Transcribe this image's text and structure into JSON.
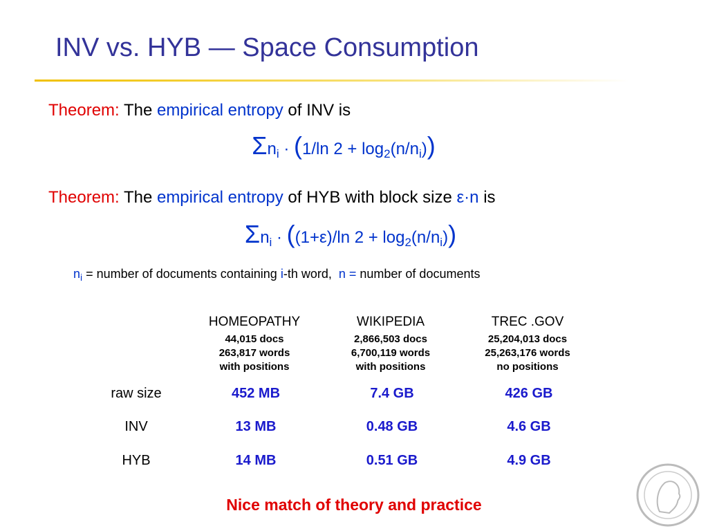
{
  "title": "INV vs. HYB — Space Consumption",
  "theorem1": {
    "label": "Theorem:",
    "the": "The",
    "term": "empirical entropy",
    "rest": "of INV is",
    "formula": [
      "Σ",
      "n",
      "i",
      " · ",
      "(",
      "1/ln 2 + log",
      "2",
      "(n/n",
      "i",
      ")",
      ")"
    ]
  },
  "theorem2": {
    "label": "Theorem:",
    "the": "The",
    "term": "empirical entropy",
    "rest": "of HYB with block size",
    "param": "ε·n",
    "end": "is",
    "formula": [
      "Σ",
      "n",
      "i",
      " · ",
      "(",
      "(1+ε)/ln 2 + log",
      "2",
      "(n/n",
      "i",
      ")",
      ")"
    ]
  },
  "definition": [
    "n",
    "i",
    " = number of documents containing ",
    "i",
    "-th word,  ",
    "n =",
    " number of documents"
  ],
  "table": {
    "columns": [
      {
        "name": "HOMEOPATHY",
        "details": [
          "44,015 docs",
          "263,817 words",
          "with positions"
        ]
      },
      {
        "name": "WIKIPEDIA",
        "details": [
          "2,866,503 docs",
          "6,700,119 words",
          "with positions"
        ]
      },
      {
        "name": "TREC .GOV",
        "details": [
          "25,204,013 docs",
          "25,263,176 words",
          "no positions"
        ]
      }
    ],
    "rows": [
      {
        "label": "raw size",
        "values": [
          "452 MB",
          "7.4 GB",
          "426 GB"
        ]
      },
      {
        "label": "INV",
        "values": [
          "13 MB",
          "0.48 GB",
          "4.6 GB"
        ]
      },
      {
        "label": "HYB",
        "values": [
          "14 MB",
          "0.51 GB",
          "4.9 GB"
        ]
      }
    ]
  },
  "footer": "Nice match of theory and practice"
}
